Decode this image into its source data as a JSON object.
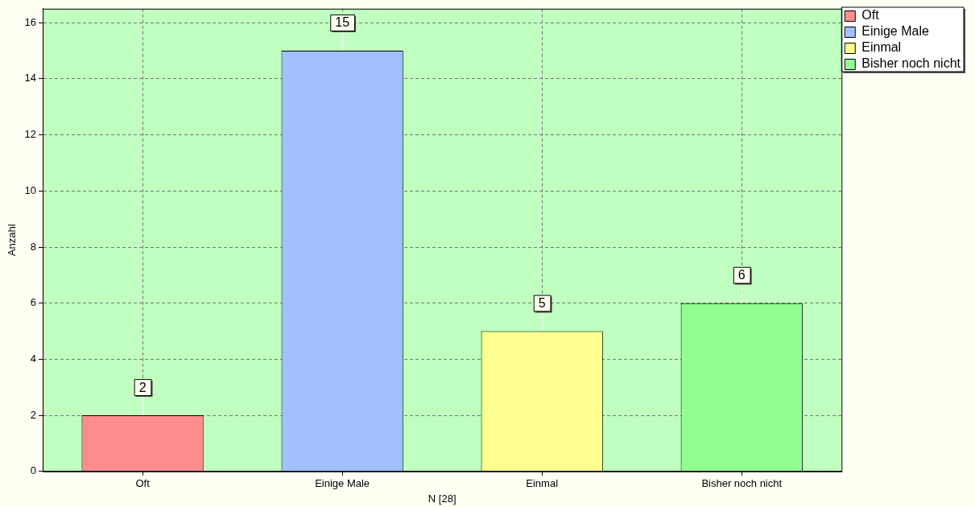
{
  "chart_data": {
    "type": "bar",
    "xlabel": "N [28]",
    "ylabel": "Anzahl",
    "categories": [
      "Oft",
      "Einige Male",
      "Einmal",
      "Bisher noch nicht"
    ],
    "series": [
      {
        "name": "Oft",
        "color": "#ff8c8c",
        "values": [
          2,
          null,
          null,
          null
        ]
      },
      {
        "name": "Einige Male",
        "color": "#a0c0ff",
        "values": [
          null,
          15,
          null,
          null
        ]
      },
      {
        "name": "Einmal",
        "color": "#ffff90",
        "values": [
          null,
          null,
          5,
          null
        ]
      },
      {
        "name": "Bisher noch nicht",
        "color": "#90ff90",
        "values": [
          null,
          null,
          null,
          6
        ]
      }
    ],
    "ylim": [
      0,
      16.5
    ],
    "yticks": [
      0,
      2,
      4,
      6,
      8,
      10,
      12,
      14,
      16
    ],
    "grid": true,
    "legend": "right",
    "data_labels": true
  }
}
